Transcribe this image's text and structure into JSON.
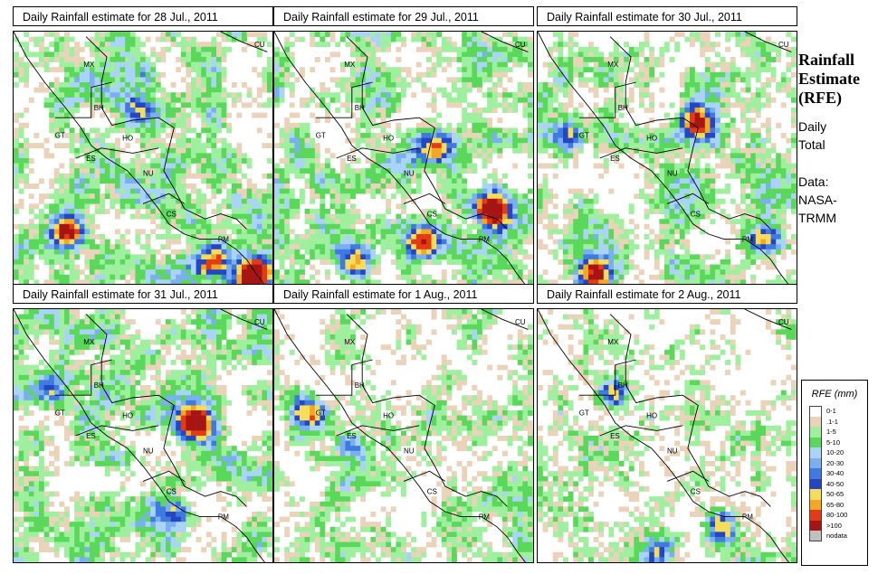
{
  "side_panel": {
    "title_lines": [
      "Rainfall",
      "Estimate",
      "(RFE)"
    ],
    "daily_lines": [
      "Daily",
      "Total"
    ],
    "data_lines": [
      "Data:",
      "NASA-",
      "TRMM"
    ]
  },
  "legend": {
    "title": "RFE (mm)",
    "items": [
      {
        "label": "0-1",
        "color": "#ffffff"
      },
      {
        "label": ".1-1",
        "color": "#ead3b9"
      },
      {
        "label": "1-5",
        "color": "#9ef09e"
      },
      {
        "label": "5-10",
        "color": "#5ad85a"
      },
      {
        "label": "10-20",
        "color": "#aad4f7"
      },
      {
        "label": "20-30",
        "color": "#7ab0ef"
      },
      {
        "label": "30-40",
        "color": "#3f7ae0"
      },
      {
        "label": "40-50",
        "color": "#2346c4"
      },
      {
        "label": "50-65",
        "color": "#f5dc5a"
      },
      {
        "label": "65-80",
        "color": "#f5a623"
      },
      {
        "label": "80-100",
        "color": "#e23b16"
      },
      {
        "label": ">100",
        "color": "#a61414"
      },
      {
        "label": "nodata",
        "color": "#c0c0c0"
      }
    ]
  },
  "map_labels": [
    "MX",
    "BH",
    "GT",
    "HO",
    "ES",
    "NU",
    "CS",
    "PM",
    "CU"
  ],
  "panels": [
    {
      "title": "Daily Rainfall estimate for  28 Jul., 2011",
      "seed": 11,
      "wet": 0.62,
      "hot": [
        [
          0.2,
          0.78,
          2.3
        ],
        [
          0.9,
          0.95,
          2.8
        ],
        [
          0.75,
          0.9,
          1.8
        ],
        [
          0.48,
          0.3,
          1.2
        ]
      ]
    },
    {
      "title": "Daily Rainfall estimate for  29 Jul., 2011",
      "seed": 23,
      "wet": 0.6,
      "hot": [
        [
          0.82,
          0.7,
          2.4
        ],
        [
          0.55,
          0.82,
          2.0
        ],
        [
          0.6,
          0.45,
          1.6
        ],
        [
          0.3,
          0.9,
          1.4
        ]
      ]
    },
    {
      "title": "Daily Rainfall estimate for  30 Jul., 2011",
      "seed": 37,
      "wet": 0.55,
      "hot": [
        [
          0.6,
          0.35,
          2.4
        ],
        [
          0.2,
          0.95,
          2.0
        ],
        [
          0.1,
          0.4,
          1.3
        ],
        [
          0.85,
          0.8,
          1.2
        ]
      ]
    },
    {
      "title": "Daily Rainfall estimate for  31 Jul., 2011",
      "seed": 41,
      "wet": 0.58,
      "hot": [
        [
          0.68,
          0.44,
          2.9
        ],
        [
          0.12,
          0.3,
          1.0
        ],
        [
          0.6,
          0.8,
          1.2
        ]
      ]
    },
    {
      "title": "Daily Rainfall estimate for  1 Aug., 2011",
      "seed": 53,
      "wet": 0.5,
      "hot": [
        [
          0.12,
          0.4,
          1.3
        ],
        [
          0.3,
          0.55,
          1.0
        ]
      ]
    },
    {
      "title": "Daily Rainfall estimate for  2 Aug., 2011",
      "seed": 67,
      "wet": 0.42,
      "hot": [
        [
          0.28,
          0.32,
          1.6
        ],
        [
          0.7,
          0.85,
          1.2
        ],
        [
          0.45,
          0.95,
          1.0
        ]
      ]
    }
  ]
}
